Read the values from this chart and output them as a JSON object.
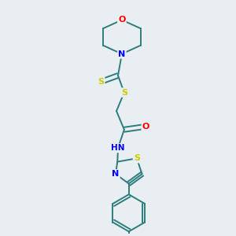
{
  "background_color": "#e8eef2",
  "bond_color": "#2d7d7d",
  "atom_colors": {
    "O": "#ff0000",
    "N": "#0000ff",
    "S": "#cccc00",
    "C": "#2d7d7d"
  },
  "figsize": [
    3.0,
    3.0
  ],
  "dpi": 100,
  "lw": 1.4
}
